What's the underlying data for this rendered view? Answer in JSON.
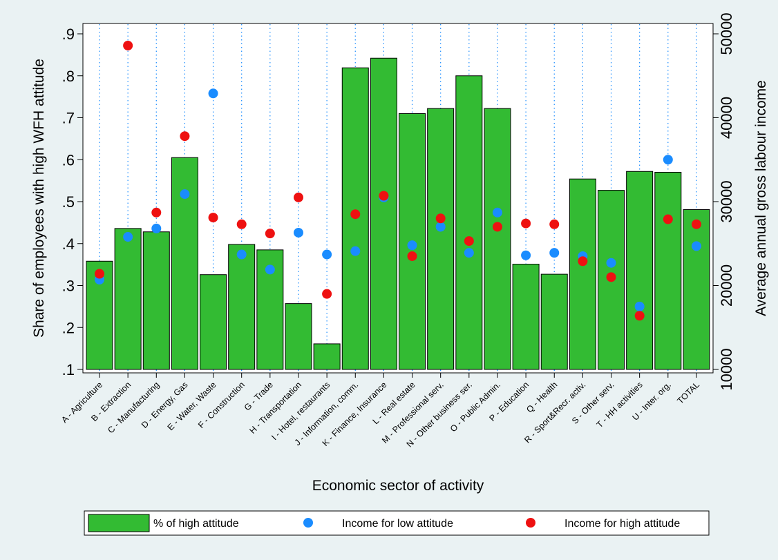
{
  "chart_data": {
    "type": "bar",
    "xlabel": "Economic sector of activity",
    "ylabel": "Share of employees with high WFH attitude",
    "y2label": "Average annual gross labour income",
    "ylim": [
      0.1,
      0.9
    ],
    "y2lim": [
      10000,
      50000
    ],
    "yticks": [
      ".1",
      ".2",
      ".3",
      ".4",
      ".5",
      ".6",
      ".7",
      ".8",
      ".9"
    ],
    "y2ticks": [
      "10000",
      "20000",
      "30000",
      "40000",
      "50000"
    ],
    "grid": "vertical dotted",
    "legend_position": "bottom",
    "categories": [
      "A - Agriculture",
      "B - Extraction",
      "C - Manufacturing",
      "D - Energy, Gas",
      "E - Water, Waste",
      "F - Construction",
      "G - Trade",
      "H - Transportation",
      "I - Hotel, restaurants",
      "J - Information, comm.",
      "K - Finance, Insurance",
      "L - Real estate",
      "M - Professional serv.",
      "N - Other business ser.",
      "O - Public Admin.",
      "P - Education",
      "Q - Health",
      "R - Sport&Recr. activ.",
      "S - Other serv.",
      "T - HH activities",
      "U - Inter. org.",
      "TOTAL"
    ],
    "series": [
      {
        "name": "% of high attitude",
        "kind": "bar",
        "axis": "left",
        "color": "#33bb33",
        "values": [
          0.358,
          0.436,
          0.428,
          0.605,
          0.326,
          0.398,
          0.385,
          0.257,
          0.161,
          0.819,
          0.842,
          0.71,
          0.722,
          0.8,
          0.722,
          0.351,
          0.327,
          0.554,
          0.527,
          0.572,
          0.57,
          0.481
        ]
      },
      {
        "name": "Income for low attitude",
        "kind": "scatter",
        "axis": "right",
        "color": "#1a8cff",
        "values": [
          20700,
          25800,
          26800,
          30900,
          42900,
          23700,
          21900,
          26300,
          23700,
          24100,
          30500,
          24800,
          27000,
          23900,
          28700,
          23600,
          23900,
          23500,
          22700,
          17500,
          35000,
          24700
        ]
      },
      {
        "name": "Income for high attitude",
        "kind": "scatter",
        "axis": "right",
        "color": "#ee1111",
        "values": [
          21400,
          48600,
          28700,
          37800,
          28100,
          27300,
          26200,
          30500,
          19000,
          28500,
          30700,
          23500,
          28000,
          25300,
          27000,
          27400,
          27300,
          22900,
          21000,
          16400,
          27900,
          27300
        ]
      }
    ]
  }
}
